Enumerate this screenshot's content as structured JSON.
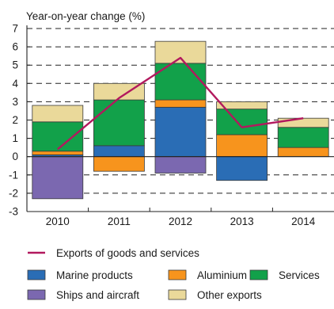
{
  "chart_data": {
    "type": "bar",
    "subtype": "stacked-bar-with-line",
    "ylabel": "Year-on-year change (%)",
    "xlabel": "",
    "title": "",
    "categories": [
      "2010",
      "2011",
      "2012",
      "2013",
      "2014"
    ],
    "ylim": [
      -3,
      7
    ],
    "yticks": [
      -3,
      -2,
      -1,
      0,
      1,
      2,
      3,
      4,
      5,
      6,
      7
    ],
    "grid": "dashed horizontal",
    "legend_position": "bottom",
    "series": [
      {
        "name": "Marine products",
        "color": "#2a6db5",
        "values": [
          0.1,
          0.6,
          2.7,
          -1.3,
          0.0
        ]
      },
      {
        "name": "Aluminium",
        "color": "#f7941d",
        "values": [
          0.2,
          -0.8,
          0.4,
          1.2,
          0.5
        ]
      },
      {
        "name": "Services",
        "color": "#12a14a",
        "values": [
          1.6,
          2.5,
          2.0,
          1.4,
          1.1
        ]
      },
      {
        "name": "Ships and aircraft",
        "color": "#7b68b0",
        "values": [
          -2.3,
          0.0,
          -0.9,
          0.0,
          0.0
        ]
      },
      {
        "name": "Other exports",
        "color": "#ead99a",
        "values": [
          0.9,
          0.9,
          1.2,
          0.4,
          0.5
        ]
      }
    ],
    "line": {
      "name": "Exports of goods and services",
      "color": "#b2195e",
      "values": [
        0.4,
        3.2,
        5.4,
        1.6,
        2.1
      ]
    },
    "stack_order": [
      "Marine products",
      "Aluminium",
      "Services",
      "Other exports"
    ],
    "negative_stack_order": [
      "Aluminium",
      "Marine products",
      "Ships and aircraft"
    ],
    "legend_rows": [
      [
        "Exports of goods and services"
      ],
      [
        "Marine products",
        "Aluminium",
        "Services"
      ],
      [
        "Ships and aircraft",
        "Other exports"
      ]
    ]
  }
}
